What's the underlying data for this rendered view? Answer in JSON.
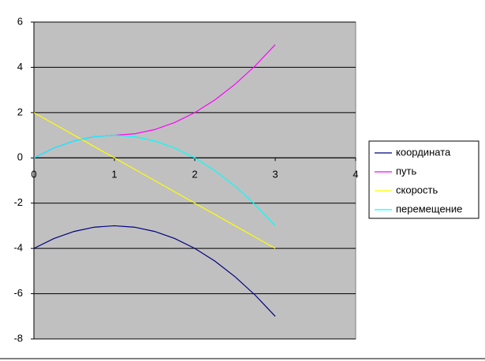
{
  "chart_data": {
    "type": "line",
    "x": [
      0,
      0.25,
      0.5,
      0.75,
      1,
      1.25,
      1.5,
      1.75,
      2,
      2.25,
      2.5,
      2.75,
      3
    ],
    "series": [
      {
        "name": "координата",
        "color": "#000080",
        "values": [
          -4,
          -3.5625,
          -3.25,
          -3.0625,
          -3,
          -3.0625,
          -3.25,
          -3.5625,
          -4,
          -4.5625,
          -5.25,
          -6.0625,
          -7
        ]
      },
      {
        "name": "путь",
        "color": "#ff00ff",
        "values": [
          0,
          0.4375,
          0.75,
          0.9375,
          1,
          1.0625,
          1.25,
          1.5625,
          2,
          2.5625,
          3.25,
          4.0625,
          5
        ]
      },
      {
        "name": "скорость",
        "color": "#ffff00",
        "values": [
          2,
          1.5,
          1,
          0.5,
          0,
          -0.5,
          -1,
          -1.5,
          -2,
          -2.5,
          -3,
          -3.5,
          -4
        ]
      },
      {
        "name": "перемещение",
        "color": "#00ffff",
        "values": [
          0,
          0.4375,
          0.75,
          0.9375,
          1,
          0.9375,
          0.75,
          0.4375,
          0,
          -0.5625,
          -1.25,
          -2.0625,
          -3
        ]
      }
    ],
    "xlim": [
      0,
      4
    ],
    "xticks": [
      0,
      1,
      2,
      3,
      4
    ],
    "ylim": [
      -8,
      6
    ],
    "yticks": [
      -8,
      -6,
      -4,
      -2,
      0,
      2,
      4,
      6
    ],
    "grid": true,
    "legend": "right"
  }
}
